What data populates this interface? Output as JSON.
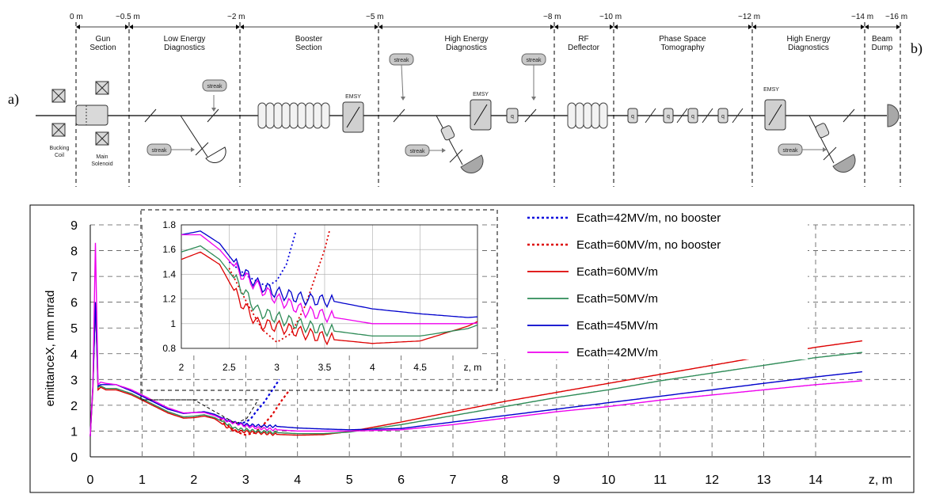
{
  "panel_a": {
    "label": "a)",
    "label_b": "b)",
    "distances": [
      "0 m",
      "~0.5 m",
      "~2 m",
      "~5 m",
      "~8 m",
      "~10 m",
      "~12 m",
      "~14 m",
      "~16 m"
    ],
    "sections": [
      {
        "line1": "Gun",
        "line2": "Section"
      },
      {
        "line1": "Low Energy",
        "line2": "Diagnostics"
      },
      {
        "line1": "Booster",
        "line2": "Section"
      },
      {
        "line1": "High Energy",
        "line2": "Diagnostics"
      },
      {
        "line1": "RF",
        "line2": "Deflector"
      },
      {
        "line1": "Phase Space",
        "line2": "Tomography"
      },
      {
        "line1": "High Energy",
        "line2": "Diagnostics"
      },
      {
        "line1": "Beam",
        "line2": "Dump"
      }
    ],
    "component_labels": {
      "bucking_1": "Bucking",
      "bucking_2": "Coil",
      "main_1": "Main",
      "main_2": "Solenoid",
      "streak": "streak",
      "emsy": "EMSY",
      "q": "q"
    }
  },
  "chart_data": {
    "type": "line",
    "ylabel": "emittanceX, mm mrad",
    "xlabel": "z, m",
    "xlim": [
      0,
      15
    ],
    "ylim": [
      0,
      9
    ],
    "xticks": [
      "0",
      "1",
      "2",
      "3",
      "4",
      "5",
      "6",
      "7",
      "8",
      "9",
      "10",
      "11",
      "12",
      "13",
      "14"
    ],
    "yticks": [
      "0",
      "1",
      "2",
      "3",
      "4",
      "5",
      "6",
      "7",
      "8",
      "9"
    ],
    "grid": true,
    "legend_position": "top-right",
    "series": [
      {
        "name": "Ecath=42MV/m, no booster",
        "color": "#0000dd",
        "style": "dotted",
        "x": [
          2.5,
          2.7,
          2.9,
          3.0,
          3.1,
          3.2,
          3.35,
          3.5,
          3.65
        ],
        "y": [
          1.5,
          1.38,
          1.3,
          1.35,
          1.48,
          1.75,
          2.1,
          2.55,
          3.0
        ]
      },
      {
        "name": "Ecath=60MV/m, no booster",
        "color": "#dd0000",
        "style": "dotted",
        "x": [
          2.5,
          2.7,
          2.85,
          3.0,
          3.15,
          3.3,
          3.5,
          3.7,
          3.85
        ],
        "y": [
          1.45,
          1.15,
          0.95,
          0.85,
          0.92,
          1.15,
          1.6,
          2.2,
          2.6
        ]
      },
      {
        "name": "Ecath=60MV/m",
        "color": "#dd0000",
        "style": "solid",
        "x": [
          0.0,
          0.05,
          0.1,
          0.15,
          0.2,
          0.3,
          0.5,
          0.8,
          1.0,
          1.3,
          1.5,
          1.8,
          2.0,
          2.2,
          2.4,
          2.6,
          2.8,
          3.0,
          3.3,
          3.6,
          4.0,
          4.5,
          5.0,
          6.0,
          7.0,
          8.0,
          9.0,
          10.0,
          11.0,
          12.0,
          13.0,
          14.0,
          14.9
        ],
        "y": [
          0.8,
          2.6,
          6.0,
          2.6,
          2.7,
          2.6,
          2.6,
          2.4,
          2.2,
          1.9,
          1.7,
          1.5,
          1.52,
          1.58,
          1.48,
          1.2,
          1.0,
          0.98,
          0.92,
          0.87,
          0.84,
          0.86,
          0.98,
          1.35,
          1.75,
          2.15,
          2.5,
          2.85,
          3.2,
          3.55,
          3.9,
          4.25,
          4.5
        ]
      },
      {
        "name": "Ecath=50MV/m",
        "color": "#2e8b57",
        "style": "solid",
        "x": [
          0.0,
          0.05,
          0.1,
          0.15,
          0.2,
          0.3,
          0.5,
          0.8,
          1.0,
          1.3,
          1.5,
          1.8,
          2.0,
          2.2,
          2.4,
          2.6,
          2.8,
          3.0,
          3.3,
          3.6,
          4.0,
          4.5,
          5.0,
          6.0,
          7.0,
          8.0,
          9.0,
          10.0,
          11.0,
          12.0,
          13.0,
          14.0,
          14.9
        ],
        "y": [
          0.8,
          2.7,
          6.0,
          2.7,
          2.75,
          2.65,
          2.65,
          2.45,
          2.25,
          1.95,
          1.75,
          1.55,
          1.58,
          1.63,
          1.52,
          1.32,
          1.1,
          1.05,
          0.98,
          0.94,
          0.9,
          0.9,
          0.96,
          1.25,
          1.6,
          1.95,
          2.3,
          2.6,
          2.95,
          3.25,
          3.55,
          3.85,
          4.05
        ]
      },
      {
        "name": "Ecath=45MV/m",
        "color": "#0000cc",
        "style": "solid",
        "x": [
          0.0,
          0.05,
          0.1,
          0.15,
          0.2,
          0.3,
          0.5,
          0.8,
          1.0,
          1.3,
          1.5,
          1.8,
          2.0,
          2.2,
          2.4,
          2.6,
          2.8,
          3.0,
          3.3,
          3.6,
          4.0,
          4.5,
          5.0,
          6.0,
          7.0,
          8.0,
          9.0,
          10.0,
          11.0,
          12.0,
          13.0,
          14.0,
          14.9
        ],
        "y": [
          0.8,
          2.75,
          6.0,
          2.75,
          2.8,
          2.8,
          2.8,
          2.55,
          2.35,
          2.05,
          1.85,
          1.68,
          1.72,
          1.75,
          1.65,
          1.45,
          1.32,
          1.25,
          1.2,
          1.18,
          1.12,
          1.08,
          1.05,
          1.1,
          1.35,
          1.6,
          1.85,
          2.1,
          2.35,
          2.6,
          2.85,
          3.1,
          3.3
        ]
      },
      {
        "name": "Ecath=42MV/m",
        "color": "#ee00ee",
        "style": "solid",
        "x": [
          0.0,
          0.05,
          0.1,
          0.15,
          0.2,
          0.3,
          0.5,
          0.8,
          1.0,
          1.3,
          1.5,
          1.8,
          2.0,
          2.2,
          2.4,
          2.6,
          2.8,
          3.0,
          3.3,
          3.6,
          4.0,
          4.5,
          5.0,
          6.0,
          7.0,
          8.0,
          9.0,
          10.0,
          11.0,
          12.0,
          13.0,
          14.0,
          14.9
        ],
        "y": [
          0.8,
          2.8,
          8.3,
          2.8,
          2.9,
          2.85,
          2.8,
          2.6,
          2.4,
          2.1,
          1.9,
          1.7,
          1.72,
          1.72,
          1.6,
          1.42,
          1.3,
          1.2,
          1.1,
          1.05,
          1.0,
          1.0,
          1.0,
          1.05,
          1.25,
          1.5,
          1.75,
          1.95,
          2.2,
          2.4,
          2.6,
          2.8,
          2.95
        ]
      }
    ],
    "inset": {
      "xlim": [
        2,
        5
      ],
      "ylim": [
        0.8,
        1.8
      ],
      "xticks": [
        "2",
        "2.5",
        "3",
        "3.5",
        "4",
        "4.5",
        "z, m"
      ],
      "yticks": [
        "0.8",
        "1",
        "1.2",
        "1.4",
        "1.6",
        "1.8"
      ]
    }
  }
}
